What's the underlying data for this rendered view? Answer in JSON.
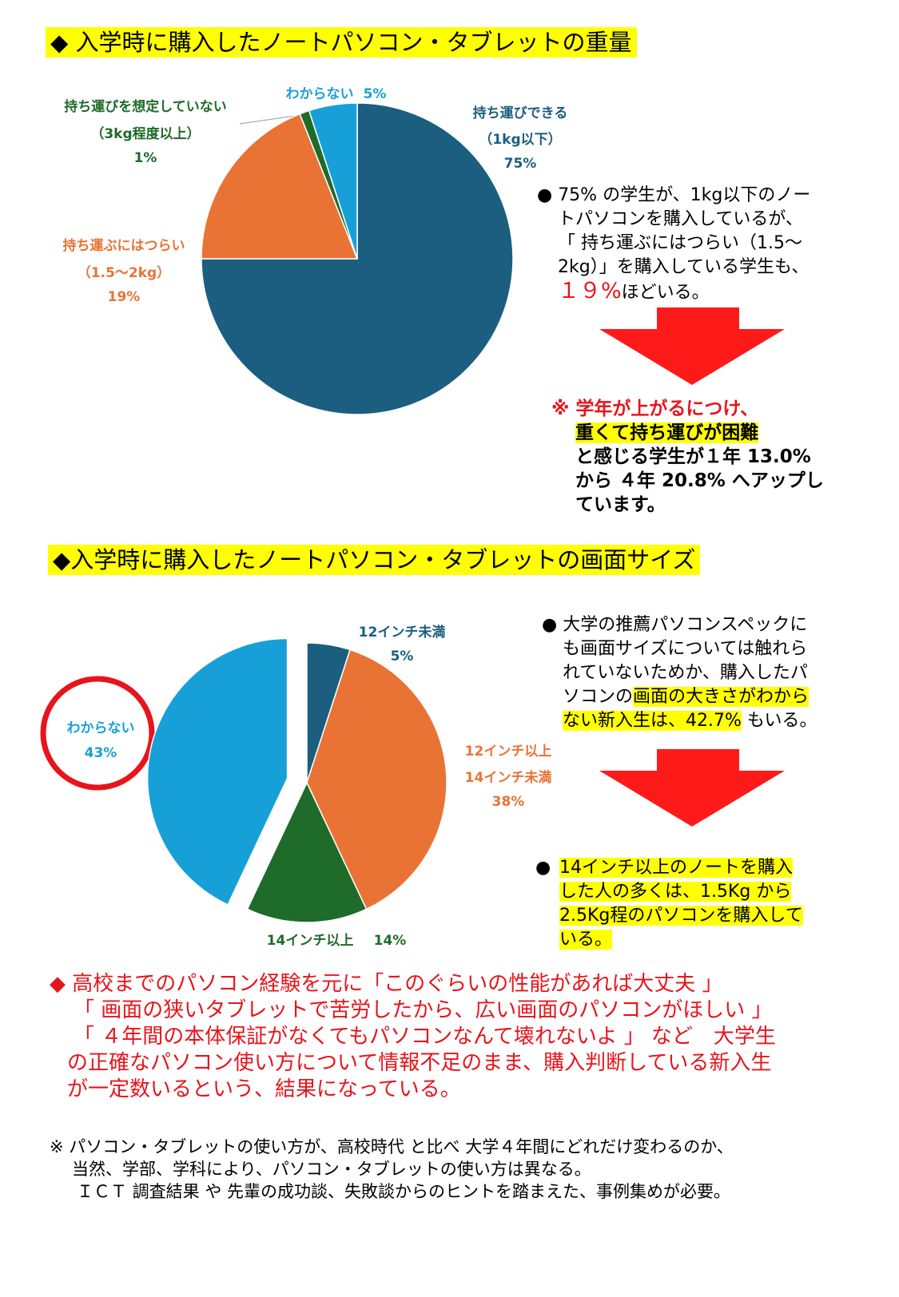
{
  "weight": {
    "heading": "◆ 入学時に購入したノートパソコン・タブレットの重量",
    "note": [
      "● 75% の学生が、1kg以下のノー",
      "トパソコンを購入しているが、",
      "「 持ち運ぶにはつらい（1.5～",
      "2kg）」を購入している学生も、"
    ],
    "note_red": "１９%",
    "note_tail": "ほどいる。",
    "finding": [
      "※ 学年が上がるにつけ、",
      "重くて持ち運びが困難",
      "と感じる学生が１年 13.0%",
      "から ４年 20.8% へアップし",
      "ています。"
    ]
  },
  "size": {
    "heading": "◆入学時に購入したノートパソコン・タブレットの画面サイズ",
    "note": [
      "● 大学の推薦パソコンスペックに",
      "も画面サイズについては触れら",
      "れていないためか、購入したパ",
      [
        "ソコンの",
        "画面の大きさがわから"
      ],
      [
        "ない新入生は、42.7%",
        " もいる。"
      ]
    ],
    "finding_bullet": "●",
    "finding": [
      "14インチ以上のノートを購入",
      "した人の多くは、1.5Kg から",
      "2.5Kg程のパソコンを購入して",
      "いる。"
    ]
  },
  "conclusion": [
    "◆ 高校までのパソコン経験を元に「このぐらいの性能があれば大丈夫 」",
    "「 画面の狭いタブレットで苦労したから、広い画面のパソコンがほしい 」",
    "「 ４年間の本体保証がなくてもパソコンなんて壊れないよ 」 など　大学生",
    "の正確なパソコン使い方について情報不足のまま、購入判断している新入生",
    "が一定数いるという、結果になっている。"
  ],
  "footnote": [
    "※ パソコン・タブレットの使い方が、高校時代 と比べ 大学４年間にどれだけ変わるのか、",
    "当然、学部、学科により、パソコン・タブレットの使い方は異なる。",
    "ＩＣＴ 調査結果 や 先輩の成功談、失敗談からのヒントを踏まえた、事例集めが必要。"
  ],
  "chart_data": [
    {
      "type": "pie",
      "categories": [
        [
          "持ち運びできる",
          "（1kg以下）"
        ],
        [
          "持ち運ぶにはつらい",
          "（1.5～2kg）"
        ],
        [
          "持ち運びを想定していない",
          "（3kg程度以上）"
        ],
        [
          "わからない"
        ]
      ],
      "values": [
        75,
        19,
        1,
        5
      ],
      "value_labels": [
        "75%",
        "19%",
        "1%",
        "5%"
      ],
      "colors": [
        "#1b5e80",
        "#e97334",
        "#1e6b2a",
        "#17a0d8"
      ]
    },
    {
      "type": "pie",
      "categories": [
        [
          "12インチ未満"
        ],
        [
          "12インチ以上",
          "14インチ未満"
        ],
        [
          "14インチ以上"
        ],
        [
          "わからない"
        ]
      ],
      "values": [
        5,
        38,
        14,
        43
      ],
      "value_labels": [
        "5%",
        "38%",
        "14%",
        "43%"
      ],
      "colors": [
        "#1b5e80",
        "#e97334",
        "#1e6b2a",
        "#17a0d8"
      ]
    }
  ]
}
